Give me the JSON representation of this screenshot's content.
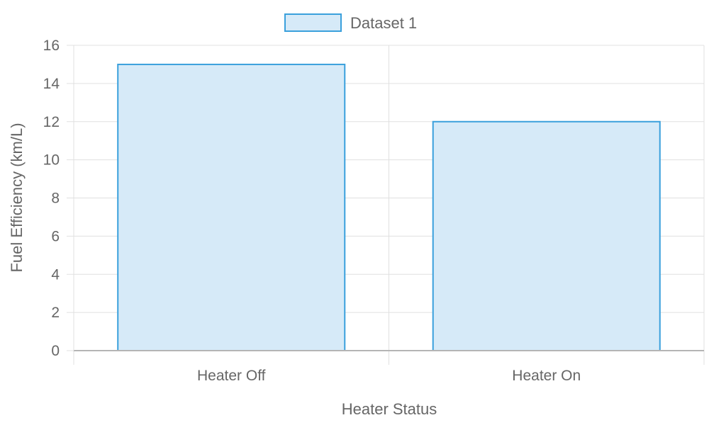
{
  "chart_data": {
    "type": "bar",
    "categories": [
      "Heater Off",
      "Heater On"
    ],
    "series": [
      {
        "name": "Dataset 1",
        "values": [
          15,
          12
        ]
      }
    ],
    "xlabel": "Heater Status",
    "ylabel": "Fuel Efficiency (km/L)",
    "ylim": [
      0,
      16
    ],
    "y_ticks": [
      "0",
      "2",
      "4",
      "6",
      "8",
      "10",
      "12",
      "14",
      "16"
    ],
    "grid": true,
    "legend_position": "top",
    "colors": {
      "bar_fill": "#d6eaf8",
      "bar_stroke": "#3aa0dc",
      "grid": "#e0e0e0",
      "axis": "#b5b5b5",
      "text": "#666666"
    }
  }
}
